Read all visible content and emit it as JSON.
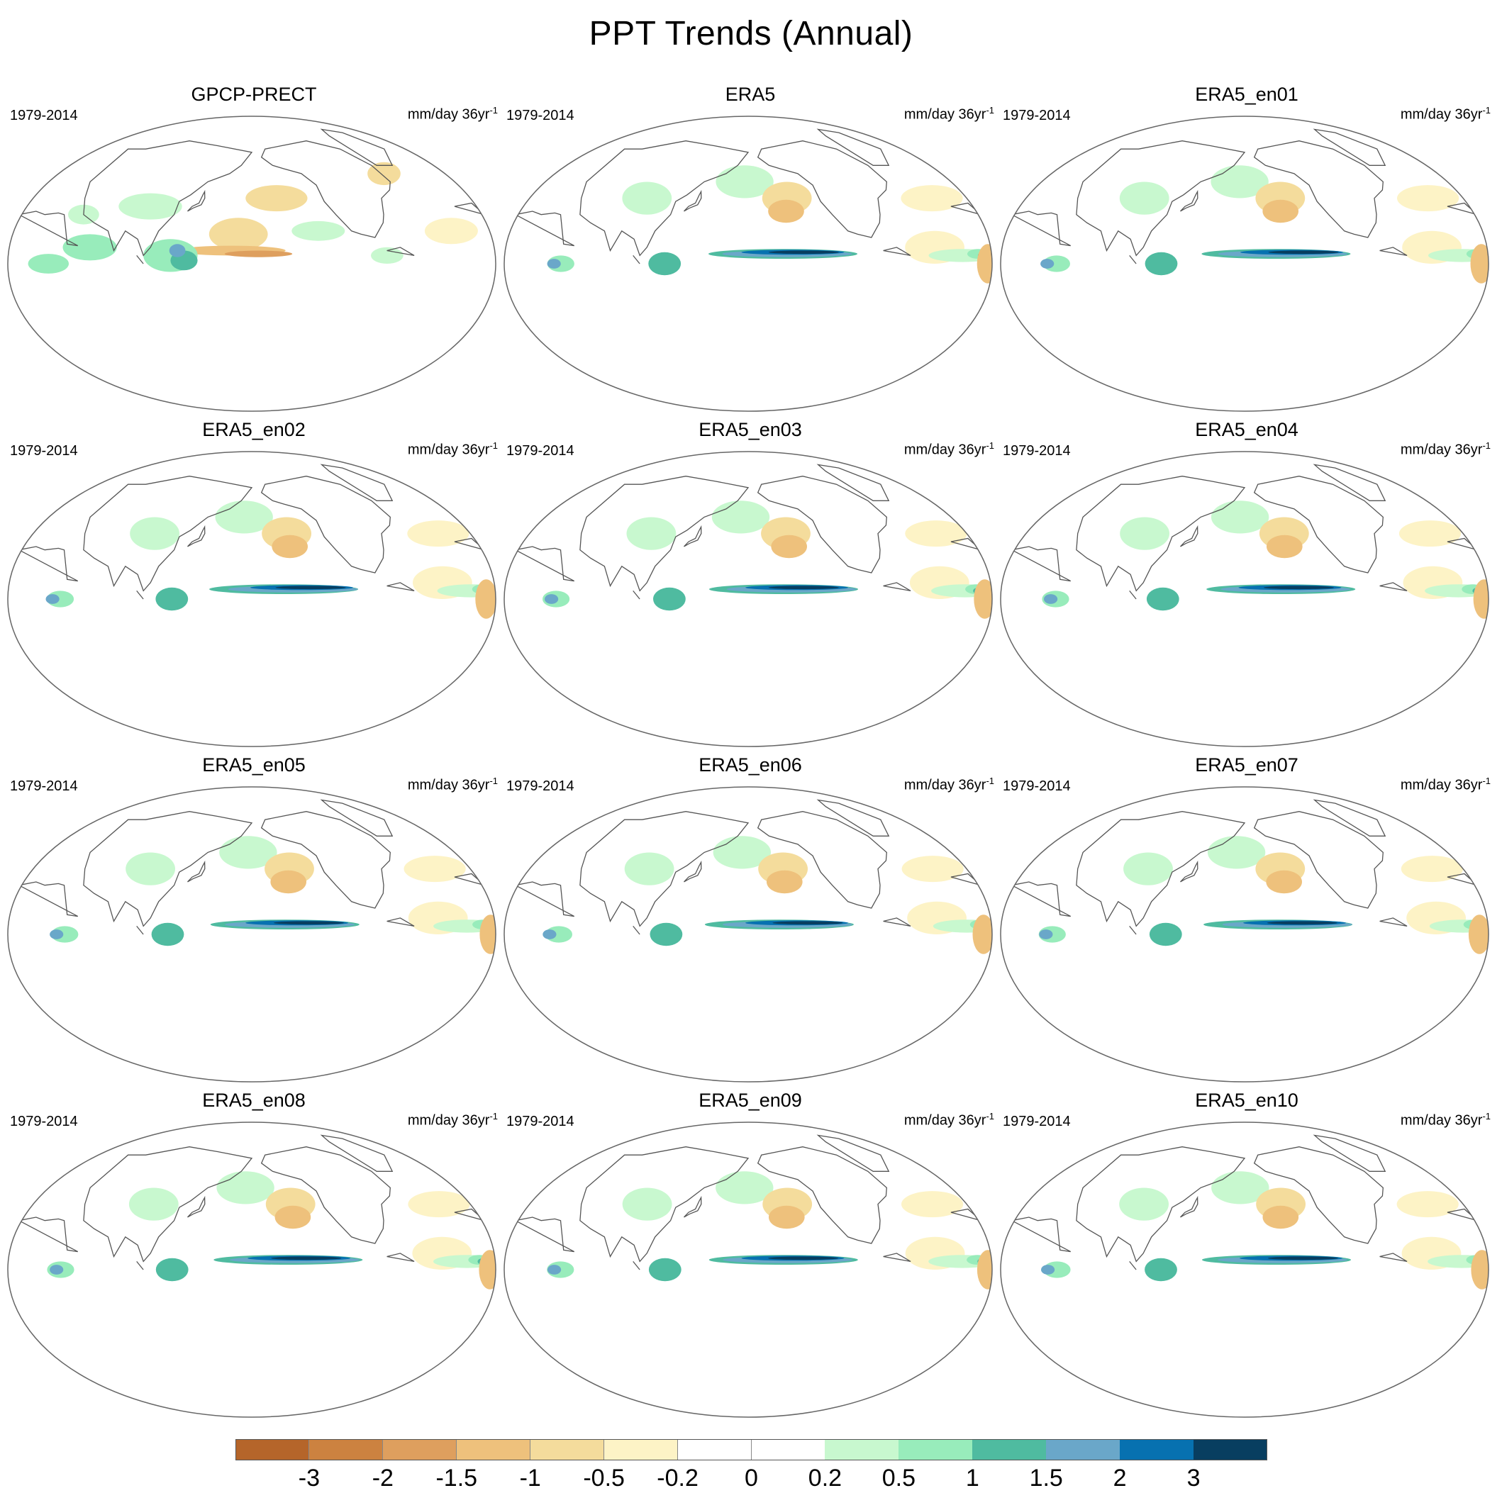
{
  "figure": {
    "title": "PPT Trends (Annual)",
    "period": "1979-2014",
    "units_main": "mm/day 36yr",
    "units_exp": "-1"
  },
  "panels": [
    {
      "title": "GPCP-PRECT",
      "kind": "obs"
    },
    {
      "title": "ERA5",
      "kind": "era"
    },
    {
      "title": "ERA5_en01",
      "kind": "era"
    },
    {
      "title": "ERA5_en02",
      "kind": "era"
    },
    {
      "title": "ERA5_en03",
      "kind": "era"
    },
    {
      "title": "ERA5_en04",
      "kind": "era"
    },
    {
      "title": "ERA5_en05",
      "kind": "era"
    },
    {
      "title": "ERA5_en06",
      "kind": "era"
    },
    {
      "title": "ERA5_en07",
      "kind": "era"
    },
    {
      "title": "ERA5_en08",
      "kind": "era"
    },
    {
      "title": "ERA5_en09",
      "kind": "era"
    },
    {
      "title": "ERA5_en10",
      "kind": "era"
    }
  ],
  "colorbar": {
    "colors": [
      "#b5652a",
      "#cc8240",
      "#de9f5e",
      "#eec17c",
      "#f4dc9c",
      "#fdf3c6",
      "#ffffff",
      "#ffffff",
      "#c8f8cf",
      "#98ecbb",
      "#4fbba0",
      "#6aa7c9",
      "#0771b0",
      "#083e60"
    ],
    "labels": [
      "-3",
      "-2",
      "-1.5",
      "-1",
      "-0.5",
      "-0.2",
      "0",
      "0.2",
      "0.5",
      "1",
      "1.5",
      "2",
      "3"
    ]
  },
  "colors": {
    "coast": "#555555",
    "border": "#666666"
  }
}
